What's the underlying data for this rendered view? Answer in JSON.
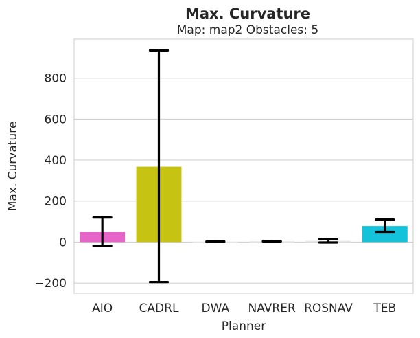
{
  "chart_data": {
    "type": "bar",
    "title": "Max. Curvature",
    "subtitle": "Map: map2 Obstacles: 5",
    "xlabel": "Planner",
    "ylabel": "Max. Curvature",
    "ylim": [
      -250,
      990
    ],
    "yticks": [
      -200,
      0,
      200,
      400,
      600,
      800
    ],
    "ytick_labels": [
      "−200",
      "0",
      "200",
      "400",
      "600",
      "800"
    ],
    "grid": true,
    "categories": [
      "AIO",
      "CADRL",
      "DWA",
      "NAVRER",
      "ROSNAV",
      "TEB"
    ],
    "values": [
      50,
      368,
      2,
      4,
      6,
      78
    ],
    "err_low": [
      -18,
      -195,
      1,
      3,
      -2,
      50
    ],
    "err_high": [
      120,
      935,
      3,
      5,
      14,
      110
    ],
    "colors": [
      "#e765c9",
      "#c6c313",
      "#e6e6e6",
      "#e6e6e6",
      "#e6e6e6",
      "#14c3d9"
    ]
  }
}
